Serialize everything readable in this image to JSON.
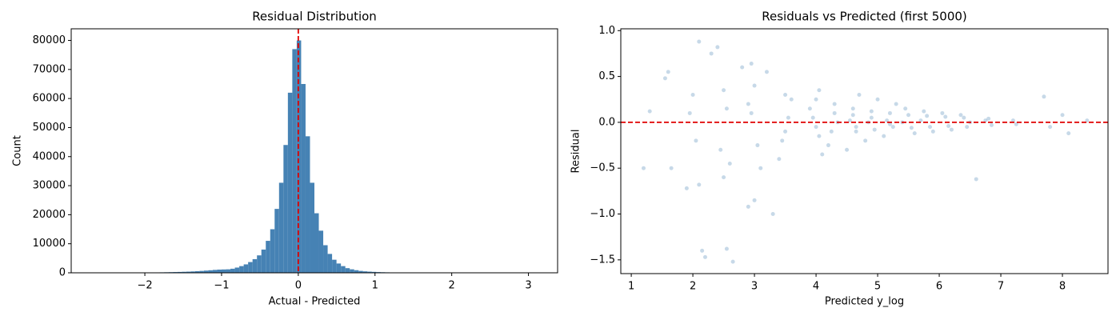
{
  "chart_data": [
    {
      "type": "histogram",
      "title": "Residual Distribution",
      "xlabel": "Actual - Predicted",
      "ylabel": "Count",
      "color": "#4682b4",
      "bins": [
        -2.67,
        -2.6124,
        -2.5548,
        -2.4972,
        -2.4396,
        -2.382,
        -2.3244,
        -2.2668,
        -2.2092,
        -2.1516,
        -2.094,
        -2.0364,
        -1.9788,
        -1.9212,
        -1.8636,
        -1.806,
        -1.7484,
        -1.6908,
        -1.6332,
        -1.5756,
        -1.518,
        -1.4604,
        -1.4028,
        -1.3452,
        -1.2876,
        -1.23,
        -1.1724,
        -1.1148,
        -1.0572,
        -0.9996,
        -0.942,
        -0.8844,
        -0.8268,
        -0.7692,
        -0.7116,
        -0.654,
        -0.5964,
        -0.5388,
        -0.4812,
        -0.4236,
        -0.366,
        -0.3084,
        -0.2508,
        -0.1932,
        -0.1356,
        -0.078,
        -0.0204,
        0.0372,
        0.0948,
        0.1524,
        0.21,
        0.2676,
        0.3252,
        0.3828,
        0.4404,
        0.498,
        0.5556,
        0.6132,
        0.6708,
        0.7284,
        0.786,
        0.8436,
        0.9012,
        0.9588,
        1.0164,
        1.074,
        1.1316,
        1.1892,
        1.2468,
        1.3044,
        1.362,
        1.4196,
        1.4772,
        1.5348,
        1.5924,
        1.65,
        1.7076,
        1.7652,
        1.8228,
        1.8804,
        1.938,
        1.9956,
        2.0532,
        2.1108,
        2.1684,
        2.226,
        2.2836,
        2.3412,
        2.3988,
        2.4564,
        2.514,
        2.5716,
        2.6292,
        2.6868,
        2.7444,
        2.802,
        2.8596,
        2.9172,
        2.9748,
        3.0324,
        3.09
      ],
      "values": [
        1,
        0,
        0,
        0,
        1,
        1,
        2,
        3,
        5,
        8,
        40,
        80,
        100,
        120,
        140,
        160,
        190,
        220,
        260,
        300,
        350,
        400,
        470,
        550,
        650,
        760,
        880,
        1000,
        1100,
        1150,
        1200,
        1400,
        1800,
        2300,
        2900,
        3700,
        4700,
        6000,
        8000,
        11000,
        15000,
        22000,
        31000,
        44000,
        62000,
        77000,
        80000,
        65000,
        47000,
        31000,
        20500,
        14500,
        9500,
        6500,
        4500,
        3200,
        2300,
        1600,
        1200,
        900,
        650,
        500,
        400,
        320,
        250,
        200,
        160,
        120,
        90,
        60,
        45,
        35,
        28,
        22,
        18,
        14,
        11,
        9,
        7,
        6,
        5,
        4,
        4,
        3,
        3,
        2,
        2,
        2,
        1,
        1,
        1,
        1,
        1,
        0,
        0,
        1,
        0,
        0,
        0,
        1
      ],
      "vline": 0,
      "vline_color": "#e00000",
      "xlim": [
        -2.96,
        3.38
      ],
      "xticks": [
        {
          "value": -2,
          "label": "−2"
        },
        {
          "value": -1,
          "label": "−1"
        },
        0,
        1,
        2,
        3
      ],
      "ylim": [
        0,
        84000
      ],
      "yticks": [
        0,
        10000,
        20000,
        30000,
        40000,
        50000,
        60000,
        70000,
        80000
      ]
    },
    {
      "type": "scatter",
      "title": "Residuals vs Predicted (first 5000)",
      "xlabel": "Predicted y_log",
      "ylabel": "Residual",
      "color": "#4682b4",
      "alpha": 0.3,
      "x": [
        1.2,
        1.3,
        1.6,
        1.55,
        1.65,
        1.9,
        2.1,
        2.3,
        2.4,
        2.15,
        2.2,
        2.55,
        2.65,
        2.1,
        2.5,
        2.9,
        3.0,
        3.3,
        2.8,
        2.95,
        3.2,
        6.6,
        7.7,
        8.0,
        8.1,
        8.4,
        7.8,
        2.0,
        2.05,
        1.95,
        2.5,
        2.45,
        2.55,
        2.6,
        3.0,
        3.05,
        2.95,
        3.1,
        2.9,
        3.5,
        3.45,
        3.55,
        3.4,
        3.6,
        3.5,
        4.0,
        4.05,
        3.95,
        4.1,
        3.9,
        4.0,
        4.05,
        4.3,
        4.25,
        4.35,
        4.3,
        4.2,
        4.6,
        4.65,
        4.55,
        4.7,
        4.5,
        4.6,
        4.65,
        4.9,
        4.95,
        4.85,
        5.0,
        4.8,
        4.9,
        5.2,
        5.25,
        5.15,
        5.3,
        5.1,
        5.2,
        5.5,
        5.55,
        5.45,
        5.6,
        5.4,
        5.8,
        5.85,
        5.75,
        5.9,
        5.7,
        6.1,
        6.15,
        6.05,
        6.2,
        6.4,
        6.45,
        6.35,
        6.5,
        6.8,
        6.85,
        6.75,
        7.2,
        7.25
      ],
      "y": [
        -0.5,
        0.12,
        0.55,
        0.48,
        -0.5,
        -0.72,
        0.88,
        0.75,
        0.82,
        -1.4,
        -1.47,
        -1.38,
        -1.52,
        -0.68,
        -0.6,
        -0.92,
        -0.85,
        -1.0,
        0.6,
        0.64,
        0.55,
        -0.62,
        0.28,
        0.08,
        -0.12,
        0.02,
        -0.05,
        0.3,
        -0.2,
        0.1,
        0.35,
        -0.3,
        0.15,
        -0.45,
        0.4,
        -0.25,
        0.1,
        -0.5,
        0.2,
        0.3,
        -0.2,
        0.05,
        -0.4,
        0.25,
        -0.1,
        0.25,
        -0.15,
        0.05,
        -0.35,
        0.15,
        -0.05,
        0.35,
        0.2,
        -0.1,
        0.0,
        0.1,
        -0.25,
        0.15,
        -0.1,
        0.02,
        0.3,
        -0.3,
        0.08,
        -0.05,
        0.12,
        -0.08,
        0.0,
        0.25,
        -0.2,
        0.05,
        0.1,
        -0.05,
        0.02,
        0.2,
        -0.15,
        -0.02,
        0.08,
        -0.06,
        0.15,
        -0.12,
        0.0,
        0.07,
        -0.05,
        0.12,
        -0.1,
        0.02,
        0.06,
        -0.04,
        0.1,
        -0.08,
        0.05,
        -0.05,
        0.08,
        0.0,
        0.04,
        -0.03,
        0.02,
        0.02,
        -0.02
      ],
      "hline": 0,
      "hline_color": "#e00000",
      "xlim": [
        0.83,
        8.74
      ],
      "xticks": [
        1,
        2,
        3,
        4,
        5,
        6,
        7,
        8
      ],
      "ylim": [
        -1.65,
        1.02
      ],
      "yticks": [
        {
          "value": -1.5,
          "label": "−1.5"
        },
        {
          "value": -1,
          "label": "−1.0"
        },
        {
          "value": -0.5,
          "label": "−0.5"
        },
        {
          "value": 0,
          "label": "0.0"
        },
        {
          "value": 0.5,
          "label": "0.5"
        },
        {
          "value": 1,
          "label": "1.0"
        }
      ]
    }
  ]
}
